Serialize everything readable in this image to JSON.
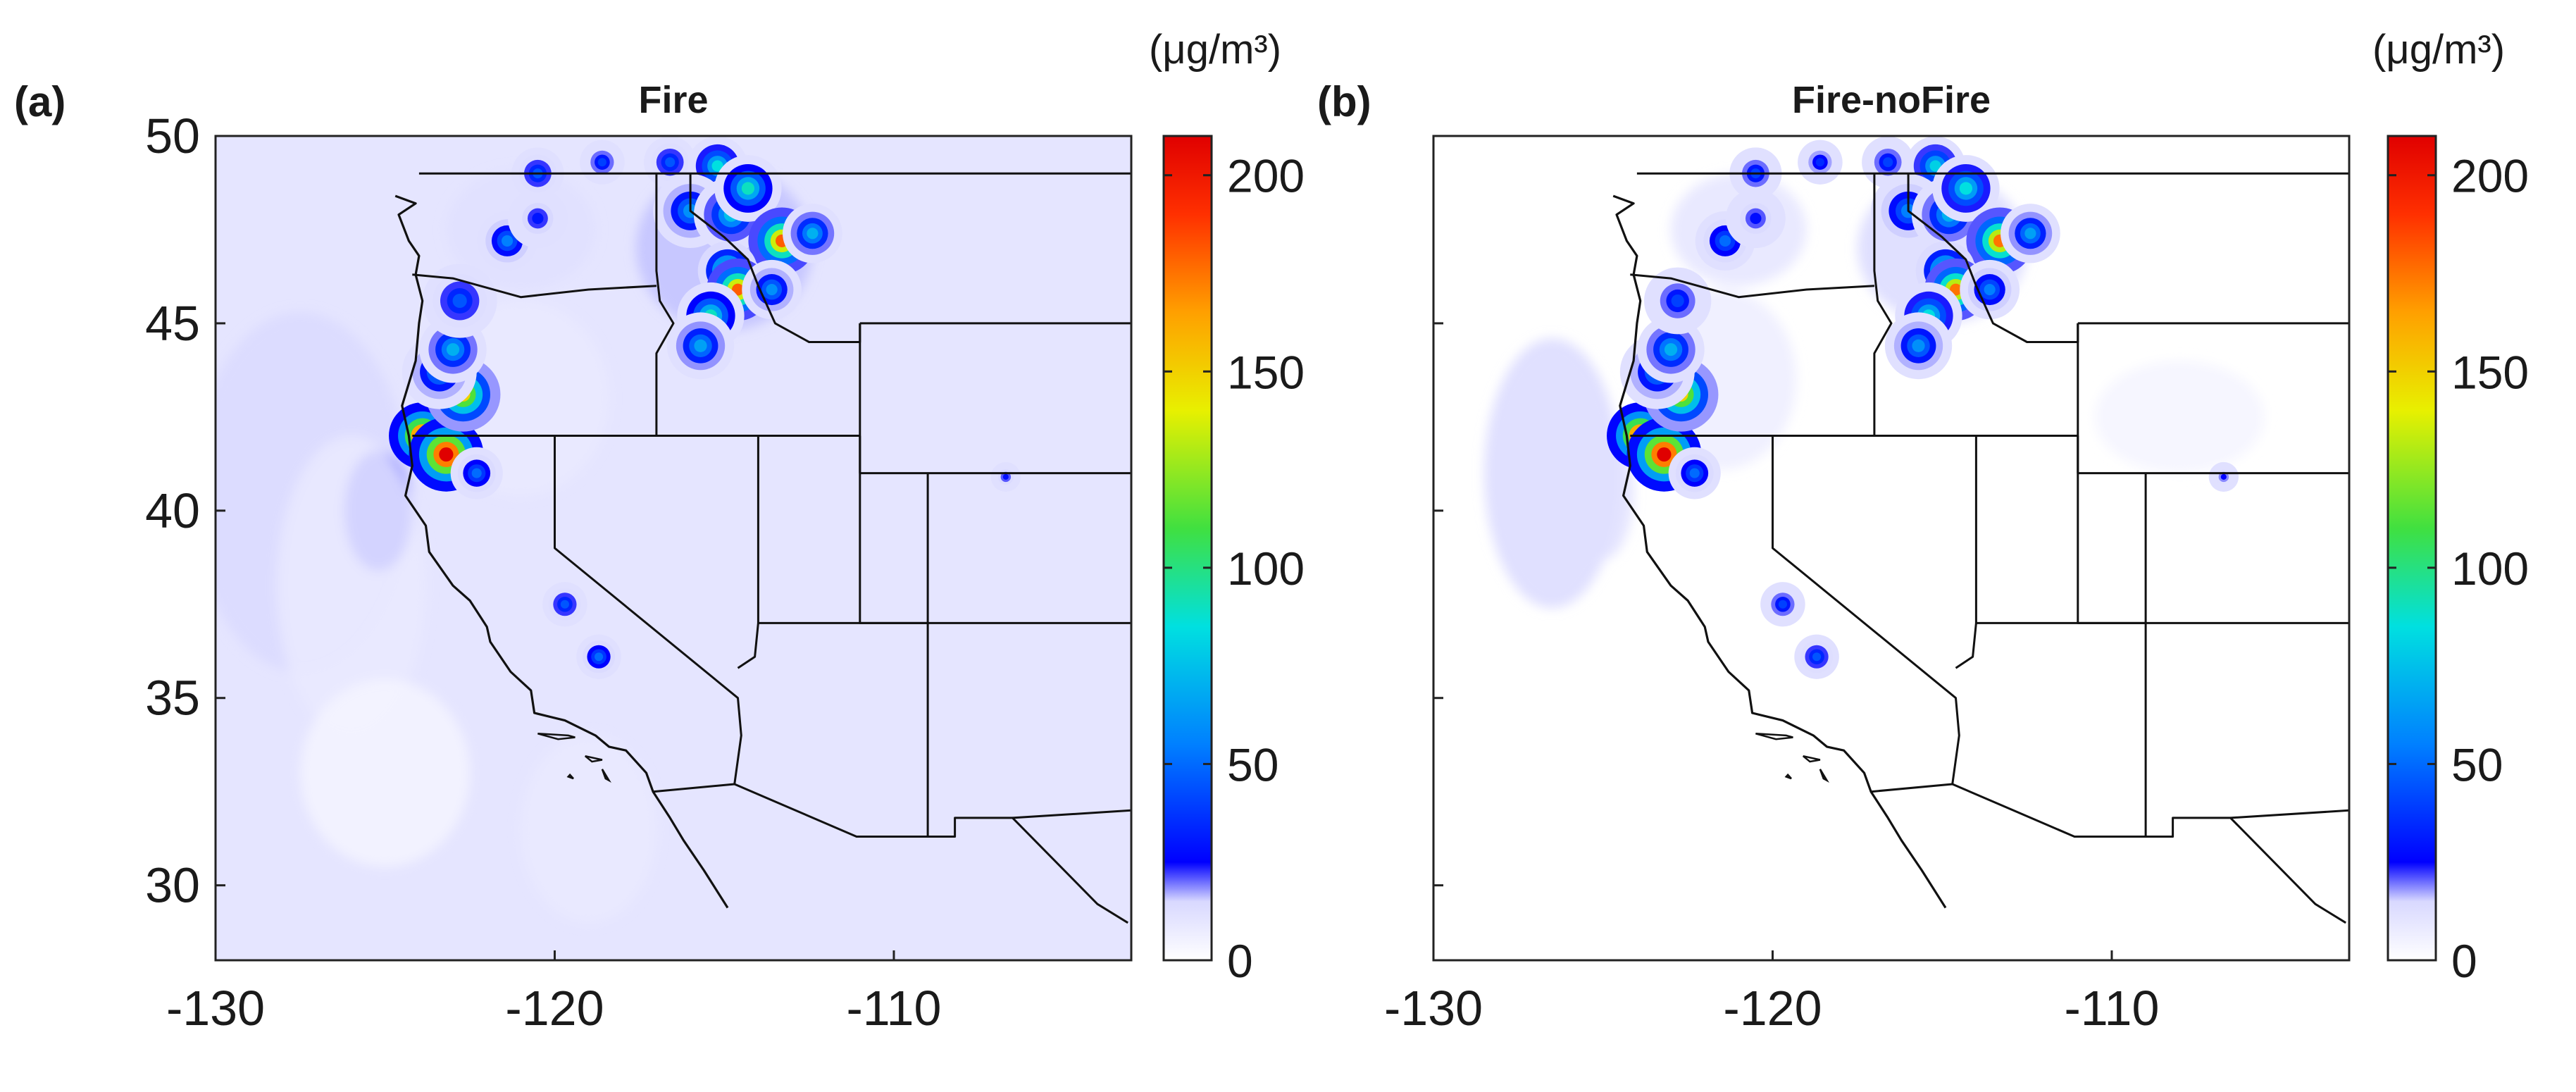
{
  "figure": {
    "unit_label": "(μg/m³)",
    "colorbar": {
      "ticks": [
        0,
        50,
        100,
        150,
        200
      ],
      "range": [
        0,
        210
      ],
      "stops": [
        [
          0,
          "#ffffff"
        ],
        [
          15,
          "#d8d8ff"
        ],
        [
          25,
          "#0000ff"
        ],
        [
          55,
          "#0080ff"
        ],
        [
          85,
          "#00e0e0"
        ],
        [
          110,
          "#40e040"
        ],
        [
          140,
          "#e8f000"
        ],
        [
          165,
          "#ffa000"
        ],
        [
          190,
          "#ff3000"
        ],
        [
          210,
          "#e00000"
        ]
      ]
    },
    "axes": {
      "lon_ticks": [
        -130,
        -120,
        -110
      ],
      "lat_ticks": [
        30,
        35,
        40,
        45,
        50
      ],
      "lon_range": [
        -130,
        -103
      ],
      "lat_range": [
        28,
        50
      ]
    },
    "panels": [
      {
        "letter": "(a)",
        "title": "Fire",
        "background_level": 10,
        "fields": [
          {
            "lon": -127.5,
            "lat": 40.5,
            "slon": 3.2,
            "slat": 4.8,
            "v": 14
          },
          {
            "lon": -125.2,
            "lat": 40.0,
            "slon": 1.0,
            "slat": 1.6,
            "v": 22
          },
          {
            "lon": -126.0,
            "lat": 38.0,
            "slon": 2.2,
            "slat": 4.0,
            "v": 8
          },
          {
            "lon": -121.0,
            "lat": 47.5,
            "slon": 2.2,
            "slat": 1.6,
            "v": 12
          },
          {
            "lon": -115.0,
            "lat": 47.0,
            "slon": 2.6,
            "slat": 2.2,
            "v": 16
          },
          {
            "lon": -121.0,
            "lat": 43.0,
            "slon": 2.6,
            "slat": 2.6,
            "v": 8
          },
          {
            "lon": -119.0,
            "lat": 31.5,
            "slon": 2.0,
            "slat": 2.5,
            "v": 8
          },
          {
            "lon": -125.0,
            "lat": 33.0,
            "slon": 2.5,
            "slat": 2.5,
            "v": 4
          }
        ],
        "hotspots": [
          {
            "lon": -123.9,
            "lat": 42.0,
            "v": 215,
            "r": 0.45
          },
          {
            "lon": -123.2,
            "lat": 41.5,
            "v": 230,
            "r": 0.5
          },
          {
            "lon": -122.7,
            "lat": 43.1,
            "v": 150,
            "r": 0.5
          },
          {
            "lon": -123.4,
            "lat": 43.7,
            "v": 60,
            "r": 0.5
          },
          {
            "lon": -123.0,
            "lat": 44.3,
            "v": 70,
            "r": 0.45
          },
          {
            "lon": -122.3,
            "lat": 41.0,
            "v": 50,
            "r": 0.35
          },
          {
            "lon": -122.8,
            "lat": 45.6,
            "v": 45,
            "r": 0.5
          },
          {
            "lon": -121.4,
            "lat": 47.2,
            "v": 55,
            "r": 0.4
          },
          {
            "lon": -120.5,
            "lat": 47.8,
            "v": 30,
            "r": 0.4
          },
          {
            "lon": -120.5,
            "lat": 49.0,
            "v": 45,
            "r": 0.35
          },
          {
            "lon": -118.6,
            "lat": 49.3,
            "v": 40,
            "r": 0.3
          },
          {
            "lon": -116.6,
            "lat": 49.3,
            "v": 45,
            "r": 0.35
          },
          {
            "lon": -115.2,
            "lat": 49.2,
            "v": 85,
            "r": 0.4
          },
          {
            "lon": -116.0,
            "lat": 48.0,
            "v": 60,
            "r": 0.5
          },
          {
            "lon": -114.8,
            "lat": 47.9,
            "v": 75,
            "r": 0.5
          },
          {
            "lon": -114.3,
            "lat": 48.6,
            "v": 90,
            "r": 0.45
          },
          {
            "lon": -113.3,
            "lat": 47.2,
            "v": 180,
            "r": 0.45
          },
          {
            "lon": -112.4,
            "lat": 47.4,
            "v": 70,
            "r": 0.4
          },
          {
            "lon": -114.9,
            "lat": 46.4,
            "v": 120,
            "r": 0.4
          },
          {
            "lon": -114.6,
            "lat": 45.9,
            "v": 180,
            "r": 0.42
          },
          {
            "lon": -115.4,
            "lat": 45.2,
            "v": 90,
            "r": 0.45
          },
          {
            "lon": -113.6,
            "lat": 45.9,
            "v": 60,
            "r": 0.4
          },
          {
            "lon": -115.7,
            "lat": 44.4,
            "v": 65,
            "r": 0.45
          },
          {
            "lon": -119.7,
            "lat": 37.5,
            "v": 45,
            "r": 0.3
          },
          {
            "lon": -118.7,
            "lat": 36.1,
            "v": 50,
            "r": 0.3
          },
          {
            "lon": -106.7,
            "lat": 40.9,
            "v": 28,
            "r": 0.2
          }
        ]
      },
      {
        "letter": "(b)",
        "title": "Fire-noFire",
        "background_level": 0,
        "fields": [
          {
            "lon": -126.5,
            "lat": 41.0,
            "slon": 2.0,
            "slat": 3.6,
            "v": 14
          },
          {
            "lon": -125.0,
            "lat": 40.5,
            "slon": 0.9,
            "slat": 1.8,
            "v": 12
          },
          {
            "lon": -121.0,
            "lat": 47.5,
            "slon": 2.0,
            "slat": 1.5,
            "v": 10
          },
          {
            "lon": -115.0,
            "lat": 47.0,
            "slon": 2.5,
            "slat": 2.0,
            "v": 14
          },
          {
            "lon": -121.5,
            "lat": 43.5,
            "slon": 2.2,
            "slat": 2.4,
            "v": 7
          },
          {
            "lon": -108.0,
            "lat": 42.5,
            "slon": 2.5,
            "slat": 1.5,
            "v": 4
          }
        ],
        "hotspots": [
          {
            "lon": -123.9,
            "lat": 42.0,
            "v": 215,
            "r": 0.45
          },
          {
            "lon": -123.2,
            "lat": 41.5,
            "v": 230,
            "r": 0.5
          },
          {
            "lon": -122.7,
            "lat": 43.1,
            "v": 150,
            "r": 0.5
          },
          {
            "lon": -123.4,
            "lat": 43.7,
            "v": 60,
            "r": 0.5
          },
          {
            "lon": -123.0,
            "lat": 44.3,
            "v": 70,
            "r": 0.45
          },
          {
            "lon": -122.3,
            "lat": 41.0,
            "v": 50,
            "r": 0.35
          },
          {
            "lon": -122.8,
            "lat": 45.6,
            "v": 40,
            "r": 0.45
          },
          {
            "lon": -121.4,
            "lat": 47.2,
            "v": 50,
            "r": 0.4
          },
          {
            "lon": -120.5,
            "lat": 47.8,
            "v": 28,
            "r": 0.4
          },
          {
            "lon": -120.5,
            "lat": 49.0,
            "v": 40,
            "r": 0.35
          },
          {
            "lon": -118.6,
            "lat": 49.3,
            "v": 35,
            "r": 0.3
          },
          {
            "lon": -116.6,
            "lat": 49.3,
            "v": 40,
            "r": 0.35
          },
          {
            "lon": -115.2,
            "lat": 49.2,
            "v": 80,
            "r": 0.4
          },
          {
            "lon": -116.0,
            "lat": 48.0,
            "v": 55,
            "r": 0.5
          },
          {
            "lon": -114.8,
            "lat": 47.9,
            "v": 70,
            "r": 0.5
          },
          {
            "lon": -114.3,
            "lat": 48.6,
            "v": 85,
            "r": 0.45
          },
          {
            "lon": -113.3,
            "lat": 47.2,
            "v": 175,
            "r": 0.45
          },
          {
            "lon": -112.4,
            "lat": 47.4,
            "v": 65,
            "r": 0.4
          },
          {
            "lon": -114.9,
            "lat": 46.4,
            "v": 115,
            "r": 0.4
          },
          {
            "lon": -114.6,
            "lat": 45.9,
            "v": 175,
            "r": 0.42
          },
          {
            "lon": -115.4,
            "lat": 45.2,
            "v": 85,
            "r": 0.45
          },
          {
            "lon": -113.6,
            "lat": 45.9,
            "v": 55,
            "r": 0.4
          },
          {
            "lon": -115.7,
            "lat": 44.4,
            "v": 60,
            "r": 0.45
          },
          {
            "lon": -119.7,
            "lat": 37.5,
            "v": 40,
            "r": 0.3
          },
          {
            "lon": -118.7,
            "lat": 36.1,
            "v": 45,
            "r": 0.3
          },
          {
            "lon": -106.7,
            "lat": 40.9,
            "v": 25,
            "r": 0.2
          }
        ]
      }
    ],
    "borders": {
      "coast": [
        [
          -124.7,
          48.4
        ],
        [
          -124.1,
          48.2
        ],
        [
          -124.6,
          47.9
        ],
        [
          -124.3,
          47.2
        ],
        [
          -124.0,
          46.8
        ],
        [
          -124.1,
          46.3
        ],
        [
          -123.9,
          45.6
        ],
        [
          -124.0,
          45.0
        ],
        [
          -124.1,
          44.0
        ],
        [
          -124.5,
          42.8
        ],
        [
          -124.3,
          42.0
        ],
        [
          -124.2,
          41.2
        ],
        [
          -124.4,
          40.4
        ],
        [
          -123.8,
          39.6
        ],
        [
          -123.7,
          38.9
        ],
        [
          -123.0,
          38.0
        ],
        [
          -122.5,
          37.6
        ],
        [
          -122.0,
          36.9
        ],
        [
          -121.9,
          36.5
        ],
        [
          -121.3,
          35.7
        ],
        [
          -120.7,
          35.2
        ],
        [
          -120.6,
          34.6
        ],
        [
          -119.7,
          34.4
        ],
        [
          -118.8,
          34.0
        ],
        [
          -118.4,
          33.7
        ],
        [
          -117.9,
          33.6
        ],
        [
          -117.3,
          33.0
        ],
        [
          -117.1,
          32.5
        ],
        [
          -116.6,
          31.8
        ],
        [
          -116.2,
          31.2
        ],
        [
          -115.6,
          30.4
        ],
        [
          -114.9,
          29.4
        ]
      ],
      "polylines": [
        [
          [
            -124.0,
            49.0
          ],
          [
            -103.0,
            49.0
          ]
        ],
        [
          [
            -124.2,
            46.3
          ],
          [
            -123.0,
            46.2
          ],
          [
            -121.0,
            45.7
          ],
          [
            -119.0,
            45.9
          ],
          [
            -117.0,
            46.0
          ]
        ],
        [
          [
            -117.0,
            49.0
          ],
          [
            -117.0,
            46.4
          ],
          [
            -116.9,
            45.6
          ],
          [
            -116.5,
            45.0
          ],
          [
            -117.0,
            44.2
          ],
          [
            -117.0,
            42.0
          ]
        ],
        [
          [
            -124.2,
            42.0
          ],
          [
            -111.0,
            42.0
          ]
        ],
        [
          [
            -120.0,
            42.0
          ],
          [
            -120.0,
            39.0
          ],
          [
            -114.6,
            35.0
          ],
          [
            -114.5,
            34.0
          ],
          [
            -114.7,
            32.7
          ]
        ],
        [
          [
            -117.1,
            32.5
          ],
          [
            -114.7,
            32.7
          ],
          [
            -111.1,
            31.3
          ],
          [
            -108.2,
            31.3
          ],
          [
            -108.2,
            31.8
          ],
          [
            -106.5,
            31.8
          ],
          [
            -104.0,
            29.5
          ],
          [
            -103.1,
            29.0
          ]
        ],
        [
          [
            -114.0,
            42.0
          ],
          [
            -114.0,
            37.0
          ],
          [
            -114.1,
            36.1
          ],
          [
            -114.6,
            35.8
          ]
        ],
        [
          [
            -111.0,
            42.0
          ],
          [
            -111.0,
            37.0
          ],
          [
            -109.0,
            37.0
          ],
          [
            -109.0,
            31.3
          ]
        ],
        [
          [
            -114.0,
            37.0
          ],
          [
            -103.0,
            37.0
          ]
        ],
        [
          [
            -109.0,
            41.0
          ],
          [
            -109.0,
            37.0
          ]
        ],
        [
          [
            -111.0,
            45.0
          ],
          [
            -103.0,
            45.0
          ]
        ],
        [
          [
            -111.0,
            45.0
          ],
          [
            -111.0,
            41.0
          ],
          [
            -103.0,
            41.0
          ]
        ],
        [
          [
            -116.0,
            49.0
          ],
          [
            -116.0,
            48.0
          ],
          [
            -115.0,
            47.3
          ],
          [
            -114.3,
            46.7
          ],
          [
            -114.0,
            46.0
          ],
          [
            -113.5,
            45.0
          ],
          [
            -112.5,
            44.5
          ],
          [
            -111.0,
            44.5
          ],
          [
            -111.0,
            45.0
          ]
        ],
        [
          [
            -106.5,
            31.8
          ],
          [
            -103.0,
            32.0
          ]
        ],
        [
          [
            -103.0,
            32.0
          ],
          [
            -103.0,
            29.0
          ]
        ]
      ],
      "islands": [
        [
          [
            -120.5,
            34.05
          ],
          [
            -119.6,
            34.0
          ],
          [
            -119.4,
            33.95
          ],
          [
            -119.9,
            33.9
          ],
          [
            -120.5,
            34.05
          ]
        ],
        [
          [
            -119.1,
            33.45
          ],
          [
            -118.9,
            33.3
          ],
          [
            -118.6,
            33.35
          ],
          [
            -119.1,
            33.45
          ]
        ],
        [
          [
            -118.6,
            33.1
          ],
          [
            -118.4,
            32.8
          ],
          [
            -118.5,
            32.85
          ],
          [
            -118.6,
            33.1
          ]
        ],
        [
          [
            -119.55,
            32.95
          ],
          [
            -119.45,
            32.85
          ],
          [
            -119.6,
            32.9
          ],
          [
            -119.55,
            32.95
          ]
        ]
      ]
    }
  }
}
